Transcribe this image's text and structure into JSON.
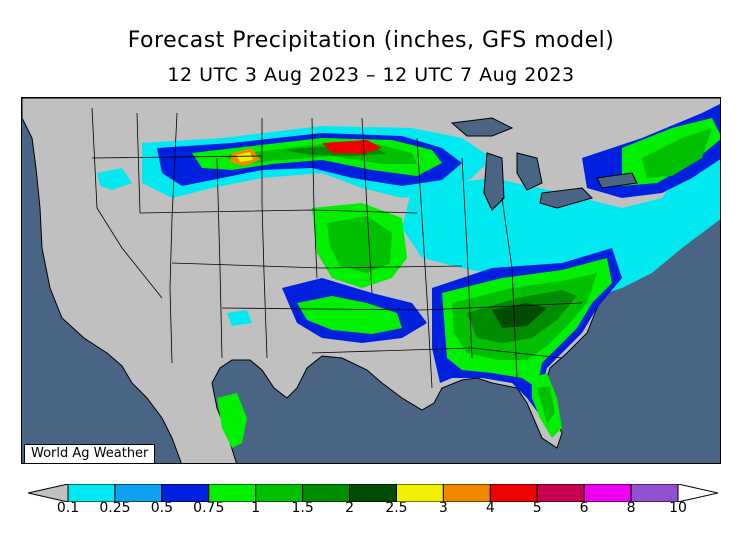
{
  "header": {
    "title": "Forecast Precipitation (inches, GFS model)",
    "subtitle": "12 UTC 3 Aug 2023 – 12 UTC 7 Aug 2023"
  },
  "map": {
    "credit": "World Ag Weather",
    "colors": {
      "ocean": "#4a6583",
      "land": "#c0c0c0",
      "lakes": "#4a6583"
    }
  },
  "legend": {
    "labels": [
      "0.1",
      "0.25",
      "0.5",
      "0.75",
      "1",
      "1.5",
      "2",
      "2.5",
      "3",
      "4",
      "5",
      "6",
      "8",
      "10"
    ],
    "colors": [
      "#00e8f0",
      "#10a0f0",
      "#0020e0",
      "#00f000",
      "#00c000",
      "#008c00",
      "#004c00",
      "#f0f000",
      "#f08800",
      "#f00000",
      "#c80050",
      "#f000f0",
      "#9050d0"
    ]
  }
}
